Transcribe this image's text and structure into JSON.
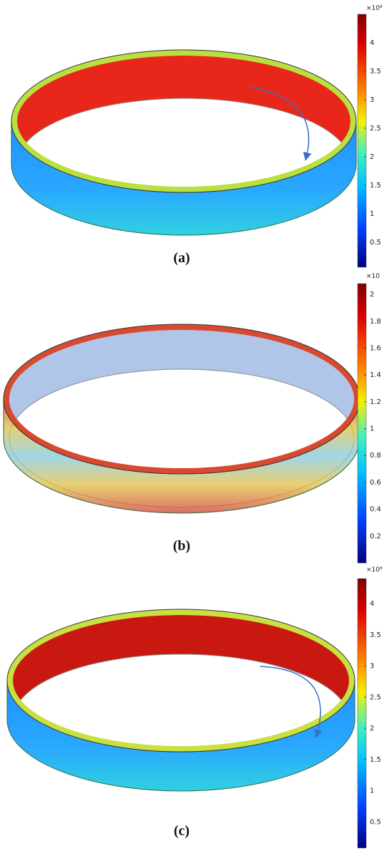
{
  "panels": [
    {
      "label": "(a)",
      "colorbar": {
        "multiplier": "×10⁸",
        "lim": [
          0.06,
          4.5
        ],
        "ticks": [
          0.5,
          1,
          1.5,
          2,
          2.5,
          3,
          3.5,
          4
        ]
      }
    },
    {
      "label": "(b)",
      "colorbar": {
        "multiplier": "×10",
        "lim": [
          0,
          2.08
        ],
        "ticks": [
          0.2,
          0.4,
          0.6,
          0.8,
          1,
          1.2,
          1.4,
          1.6,
          1.8,
          2
        ]
      }
    },
    {
      "label": "(c)",
      "colorbar": {
        "multiplier": "×10⁸",
        "lim": [
          0.08,
          4.4
        ],
        "ticks": [
          0.5,
          1,
          1.5,
          2,
          2.5,
          3,
          3.5,
          4
        ]
      }
    }
  ]
}
